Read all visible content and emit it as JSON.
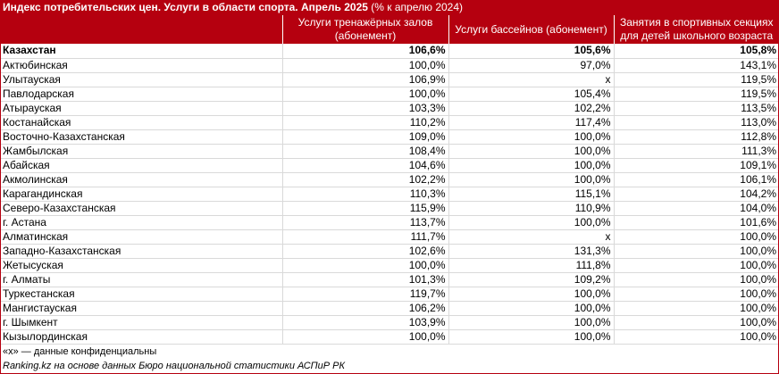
{
  "title": {
    "bold": "Индекс потребительских цен. Услуги в области спорта. Апрель 2025",
    "suffix": " (% к апрелю 2024)"
  },
  "columns": [
    "",
    "Услуги тренажёрных залов (абонемент)",
    "Услуги бассейнов (абонемент)",
    "Занятия в спортивных секциях для детей школьного возраста"
  ],
  "rows": [
    [
      "Казахстан",
      "106,6%",
      "105,6%",
      "105,8%"
    ],
    [
      "Актюбинская",
      "100,0%",
      "97,0%",
      "143,1%"
    ],
    [
      "Улытауская",
      "106,9%",
      "x",
      "119,5%"
    ],
    [
      "Павлодарская",
      "100,0%",
      "105,4%",
      "119,5%"
    ],
    [
      "Атырауская",
      "103,3%",
      "102,2%",
      "113,5%"
    ],
    [
      "Костанайская",
      "110,2%",
      "117,4%",
      "113,0%"
    ],
    [
      "Восточно-Казахстанская",
      "109,0%",
      "100,0%",
      "112,8%"
    ],
    [
      "Жамбылская",
      "108,4%",
      "100,0%",
      "111,3%"
    ],
    [
      "Абайская",
      "104,6%",
      "100,0%",
      "109,1%"
    ],
    [
      "Акмолинская",
      "102,2%",
      "100,0%",
      "106,1%"
    ],
    [
      "Карагандинская",
      "110,3%",
      "115,1%",
      "104,2%"
    ],
    [
      "Северо-Казахстанская",
      "115,9%",
      "110,9%",
      "104,0%"
    ],
    [
      "г. Астана",
      "113,7%",
      "100,0%",
      "101,6%"
    ],
    [
      "Алматинская",
      "111,7%",
      "x",
      "100,0%"
    ],
    [
      "Западно-Казахстанская",
      "102,6%",
      "131,3%",
      "100,0%"
    ],
    [
      "Жетысуская",
      "100,0%",
      "111,8%",
      "100,0%"
    ],
    [
      "г. Алматы",
      "101,3%",
      "109,2%",
      "100,0%"
    ],
    [
      "Туркестанская",
      "119,7%",
      "100,0%",
      "100,0%"
    ],
    [
      "Мангистауская",
      "106,2%",
      "100,0%",
      "100,0%"
    ],
    [
      "г. Шымкент",
      "103,9%",
      "100,0%",
      "100,0%"
    ],
    [
      "Кызылординская",
      "100,0%",
      "100,0%",
      "100,0%"
    ]
  ],
  "footnote": "«x» — данные конфиденциальны",
  "source": "Ranking.kz на основе данных Бюро национальной статистики АСПиР РК",
  "colors": {
    "accent": "#b5000f",
    "grid": "#d9d9d9"
  }
}
